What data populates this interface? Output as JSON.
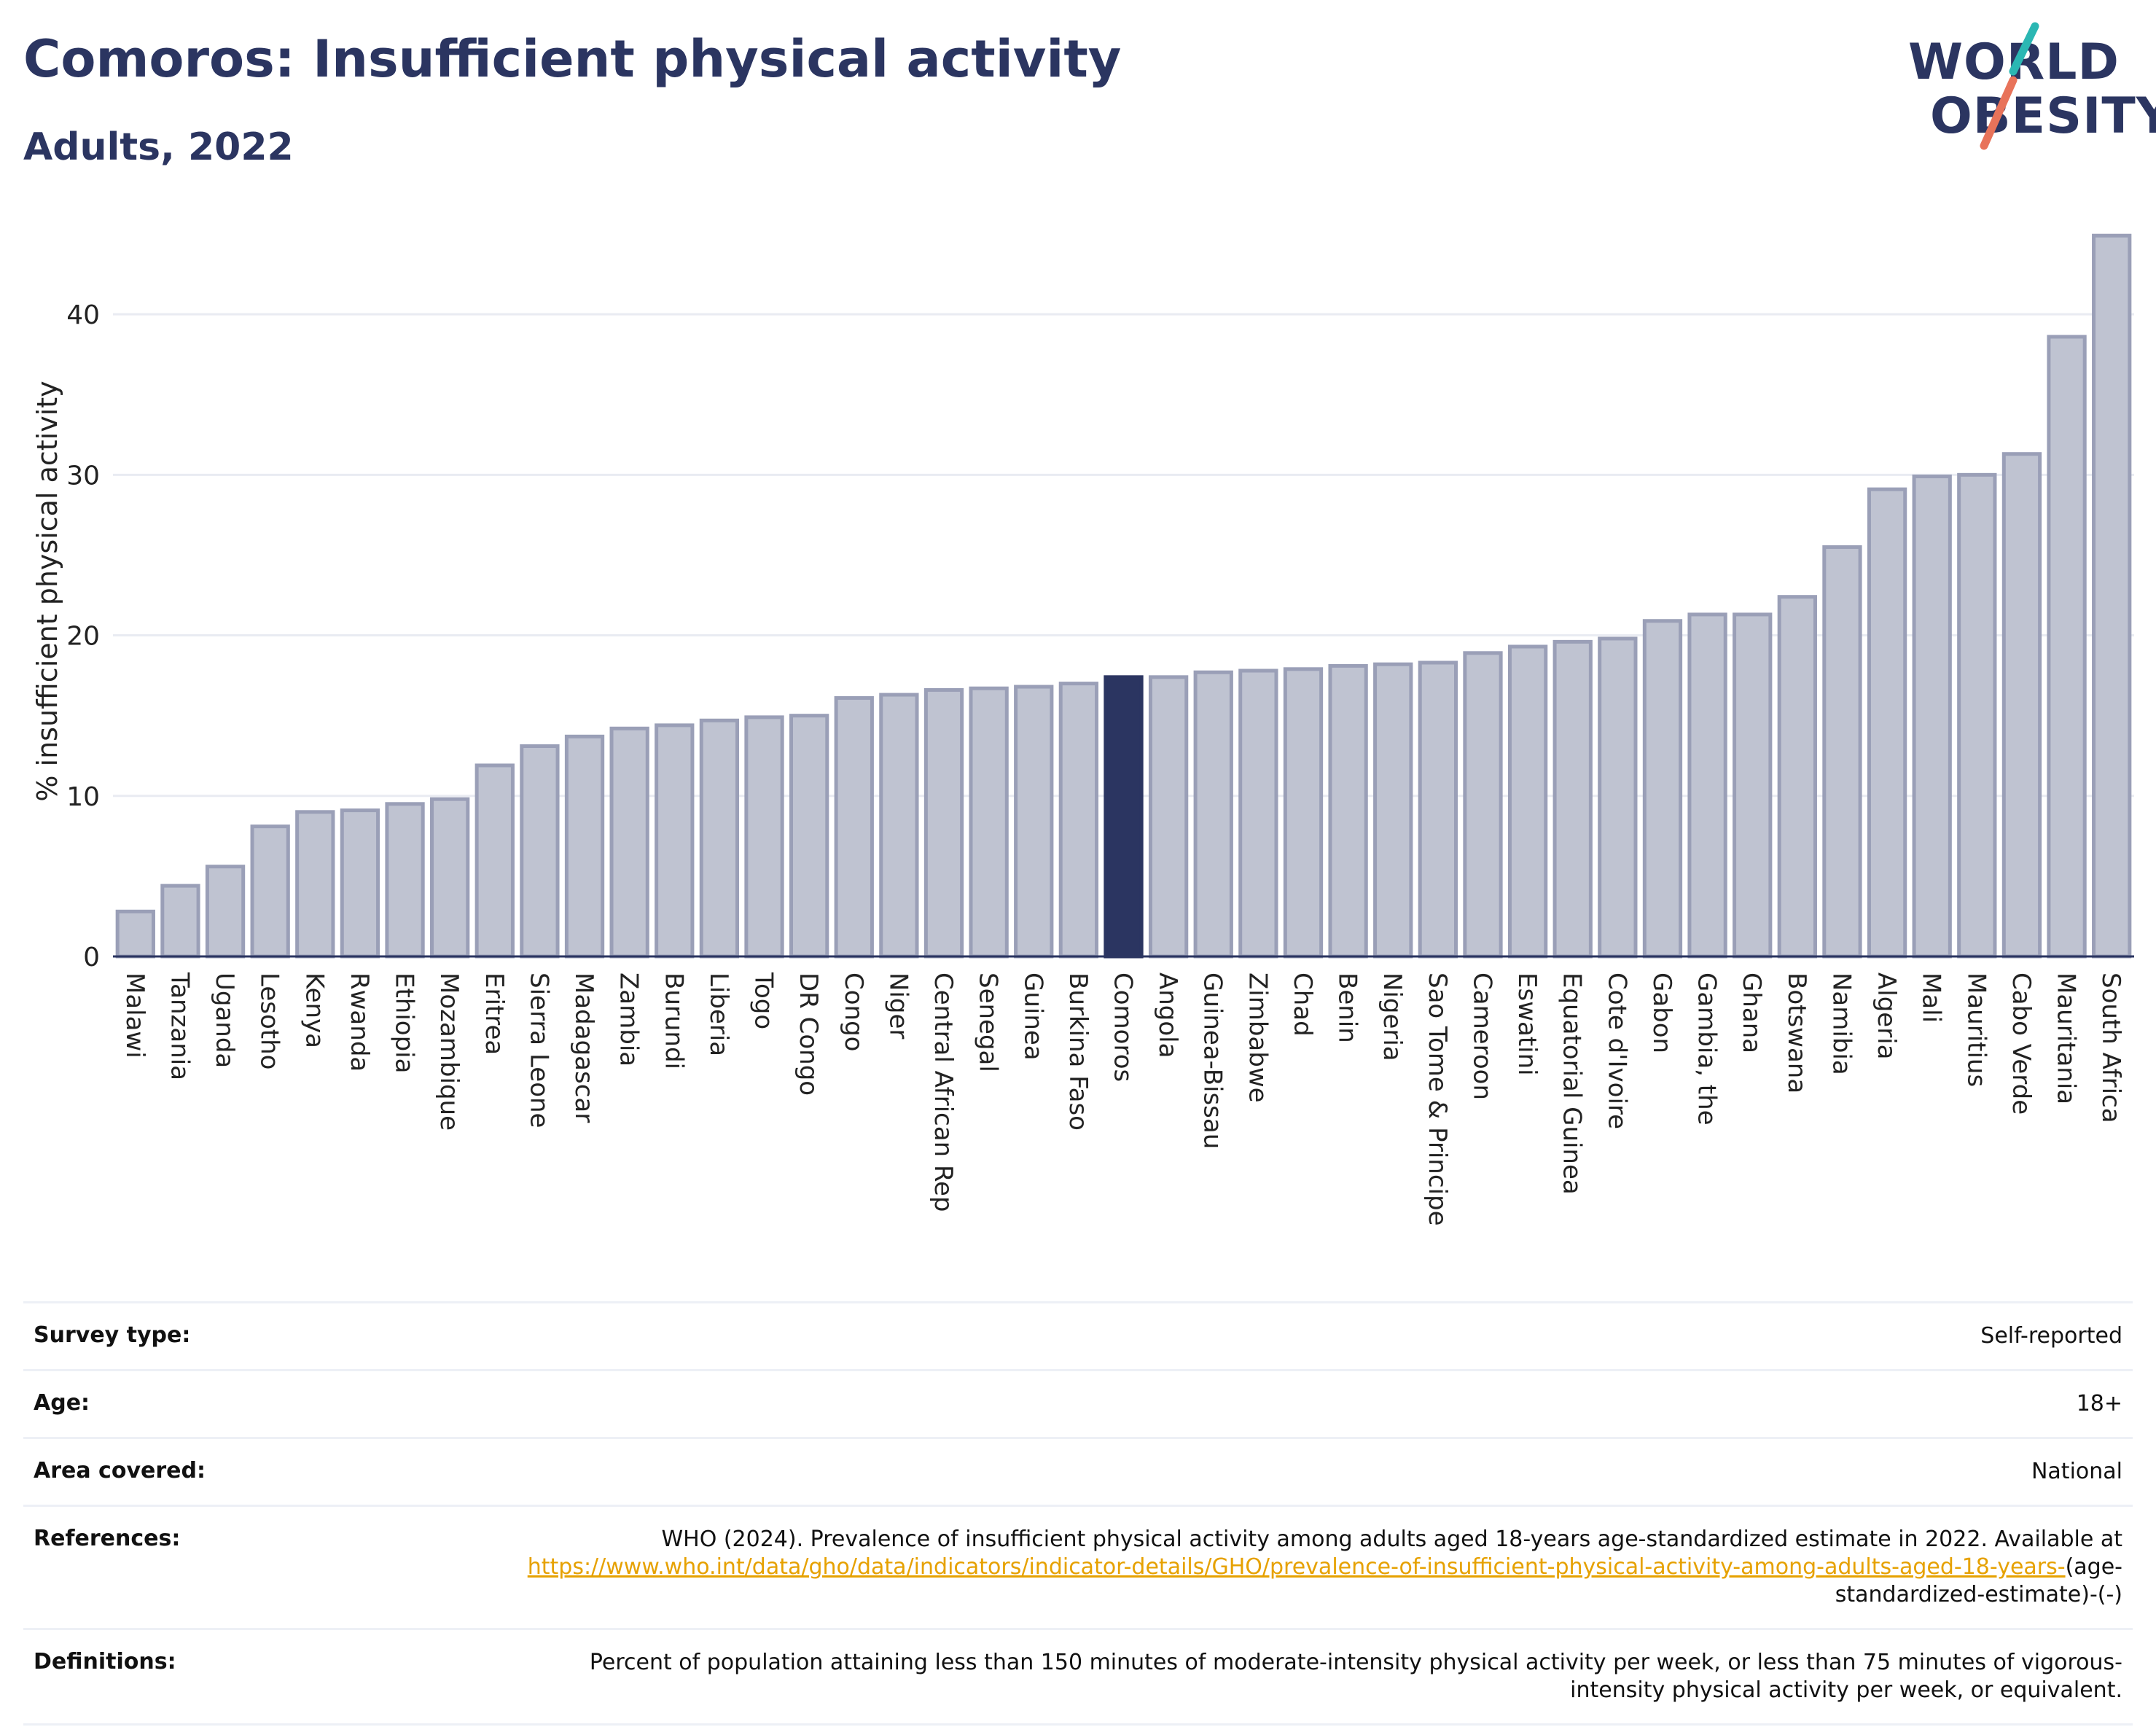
{
  "header": {
    "title": "Comoros: Insufficient physical activity",
    "subtitle": "Adults, 2022"
  },
  "logo": {
    "line1": "WORLD",
    "line2": "OBESITY",
    "accent_teal": "#2bb7b3",
    "accent_red": "#e8735a"
  },
  "colors": {
    "bar_fill": "#bfc3d1",
    "bar_stroke": "#9a9fb7",
    "highlight_fill": "#2b3561",
    "text_primary": "#2b3561",
    "link": "#e6a100"
  },
  "chart_data": {
    "type": "bar",
    "title": "",
    "xlabel": "",
    "ylabel": "% insufficient physical activity",
    "ylim": [
      0,
      45.5
    ],
    "yticks": [
      0,
      10,
      20,
      30,
      40
    ],
    "grid": true,
    "highlight": "Comoros",
    "categories": [
      "Malawi",
      "Tanzania",
      "Uganda",
      "Lesotho",
      "Kenya",
      "Rwanda",
      "Ethiopia",
      "Mozambique",
      "Eritrea",
      "Sierra Leone",
      "Madagascar",
      "Zambia",
      "Burundi",
      "Liberia",
      "Togo",
      "DR Congo",
      "Congo",
      "Niger",
      "Central African Rep",
      "Senegal",
      "Guinea",
      "Burkina Faso",
      "Comoros",
      "Angola",
      "Guinea-Bissau",
      "Zimbabwe",
      "Chad",
      "Benin",
      "Nigeria",
      "Sao Tome & Principe",
      "Cameroon",
      "Eswatini",
      "Equatorial Guinea",
      "Cote d'Ivoire",
      "Gabon",
      "Gambia, the",
      "Ghana",
      "Botswana",
      "Namibia",
      "Algeria",
      "Mali",
      "Mauritius",
      "Cabo Verde",
      "Mauritania",
      "South Africa"
    ],
    "values": [
      2.8,
      4.4,
      5.6,
      8.1,
      9.0,
      9.1,
      9.5,
      9.8,
      11.9,
      13.1,
      13.7,
      14.2,
      14.4,
      14.7,
      14.9,
      15.0,
      16.1,
      16.3,
      16.6,
      16.7,
      16.8,
      17.0,
      17.4,
      17.4,
      17.7,
      17.8,
      17.9,
      18.1,
      18.2,
      18.3,
      18.9,
      19.3,
      19.6,
      19.8,
      20.9,
      21.3,
      21.3,
      22.4,
      25.5,
      29.1,
      29.9,
      30.0,
      31.3,
      38.6,
      44.9
    ]
  },
  "info": {
    "survey_type_label": "Survey type:",
    "survey_type_value": "Self-reported",
    "age_label": "Age:",
    "age_value": "18+",
    "area_label": "Area covered:",
    "area_value": "National",
    "references_label": "References:",
    "references_text": "WHO (2024). Prevalence of insufficient physical activity among adults aged 18-years age-standardized estimate in 2022. Available at",
    "references_link": "https://www.who.int/data/gho/data/indicators/indicator-details/GHO/prevalence-of-insufficient-physical-activity-among-adults-aged-18-years-",
    "references_suffix": "(age-standardized-estimate)-(-)",
    "definitions_label": "Definitions:",
    "definitions_text": "Percent of population attaining less than 150 minutes of moderate-intensity physical activity per week, or less than 75 minutes of vigorous-intensity physical activity per week, or equivalent."
  }
}
